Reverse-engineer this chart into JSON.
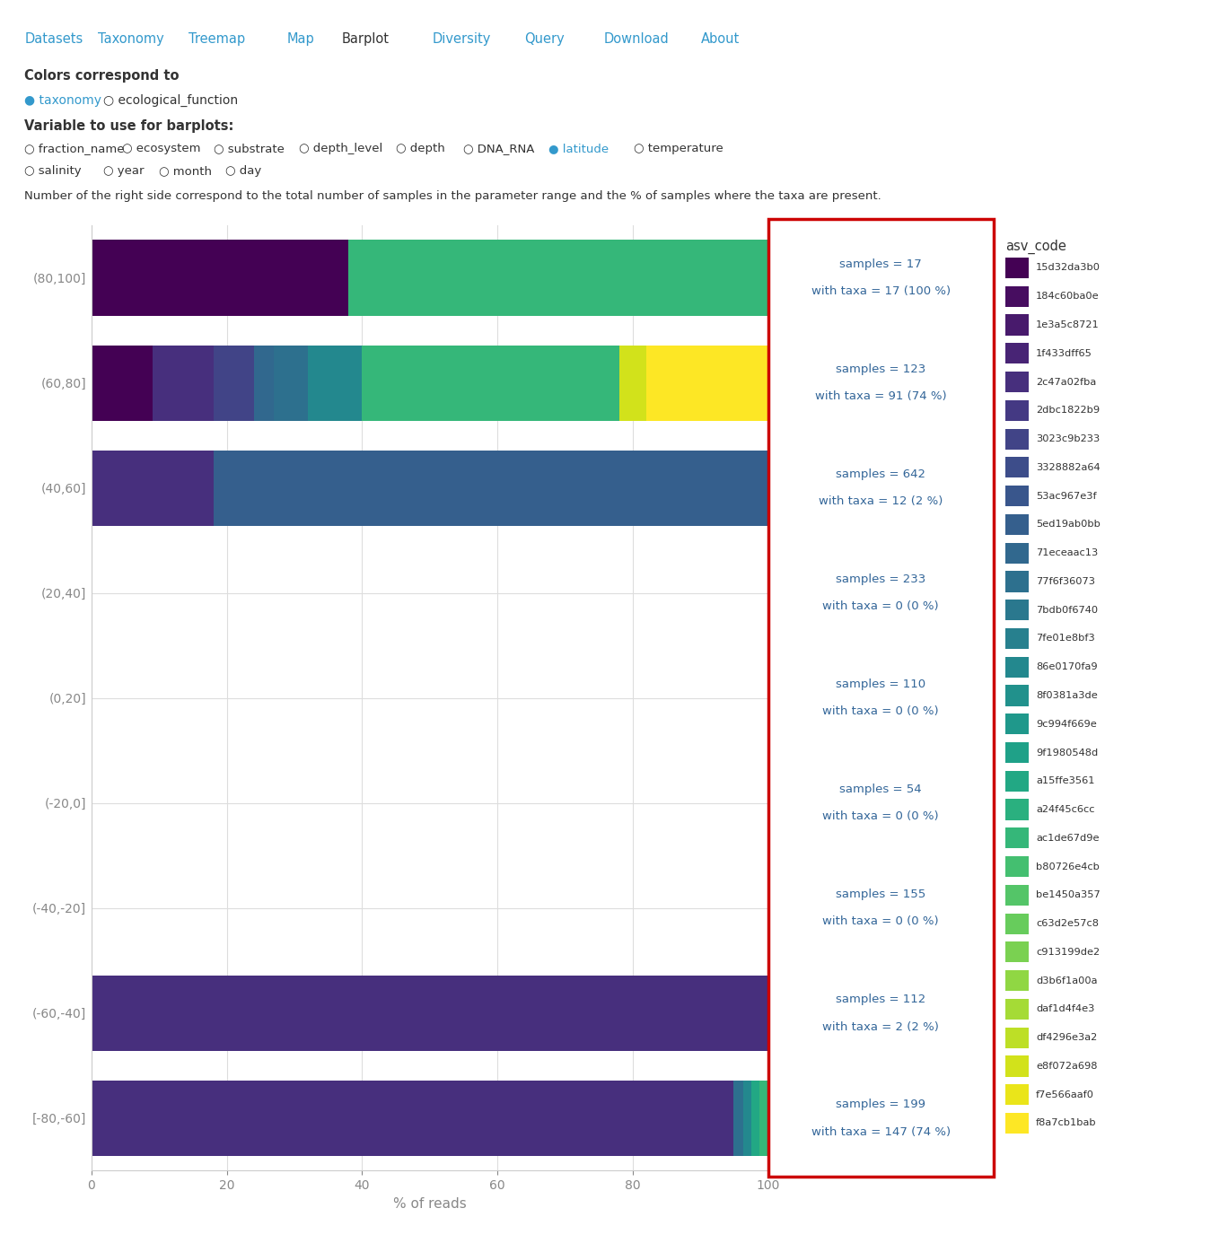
{
  "latitude_bins": [
    "(80,100]",
    "(60,80]",
    "(40,60]",
    "(20,40]",
    "(0,20]",
    "(-20,0]",
    "(-40,-20]",
    "(-60,-40]",
    "[-80,-60]"
  ],
  "samples": [
    17,
    123,
    642,
    233,
    110,
    54,
    155,
    112,
    199
  ],
  "with_taxa": [
    17,
    91,
    12,
    0,
    0,
    0,
    0,
    2,
    147
  ],
  "with_taxa_pct": [
    100,
    74,
    2,
    0,
    0,
    0,
    0,
    2,
    74
  ],
  "asv_codes": [
    "15d32da3b0",
    "184c60ba0e",
    "1e3a5c8721",
    "1f433dff65",
    "2c47a02fba",
    "2dbc1822b9",
    "3023c9b233",
    "3328882a64",
    "53ac967e3f",
    "5ed19ab0bb",
    "71eceaac13",
    "77f6f36073",
    "7bdb0f6740",
    "7fe01e8bf3",
    "86e0170fa9",
    "8f0381a3de",
    "9c994f669e",
    "9f1980548d",
    "a15ffe3561",
    "a24f45c6cc",
    "ac1de67d9e",
    "b80726e4cb",
    "be1450a357",
    "c63d2e57c8",
    "c913199de2",
    "d3b6f1a00a",
    "daf1d4f4e3",
    "df4296e3a2",
    "e8f072a698",
    "f7e566aaf0",
    "f8a7cb1bab"
  ],
  "bar_segments": {
    "(80,100]": {
      "ac1de67d9e": 62,
      "15d32da3b0": 38
    },
    "(60,80]": {
      "f8a7cb1bab": 18,
      "e8f072a698": 4,
      "ac1de67d9e": 38,
      "86e0170fa9": 8,
      "77f6f36073": 5,
      "71eceaac13": 3,
      "3023c9b233": 6,
      "2c47a02fba": 9,
      "15d32da3b0": 9
    },
    "(40,60]": {
      "5ed19ab0bb": 82,
      "2c47a02fba": 18
    },
    "(20,40]": {},
    "(0,20]": {},
    "(-20,0]": {},
    "(-40,-20]": {},
    "(-60,-40]": {
      "2c47a02fba": 100
    },
    "[-80,-60]": {
      "ac1de67d9e": 1.2,
      "a15ffe3561": 1.2,
      "86e0170fa9": 1.2,
      "77f6f36073": 1.5,
      "2c47a02fba": 94.9
    }
  },
  "nav_tabs": [
    "Datasets",
    "Taxonomy",
    "Treemap",
    "Map",
    "Barplot",
    "Diversity",
    "Query",
    "Download",
    "About"
  ],
  "active_tab": "Barplot",
  "xlabel": "% of reads",
  "legend_title": "asv_code",
  "annotation_color": "#336699",
  "border_color": "#cc0000",
  "grid_color": "#dddddd",
  "background_color": "#ffffff",
  "header_text_line1": "Number of the right side correspond to the total number of samples in the parameter range and the % of samples where the taxa are present.",
  "tab_color": "#3399cc",
  "tab_active_color": "#333333",
  "ui_text_color": "#333333",
  "ui_label_color": "#cc6600"
}
